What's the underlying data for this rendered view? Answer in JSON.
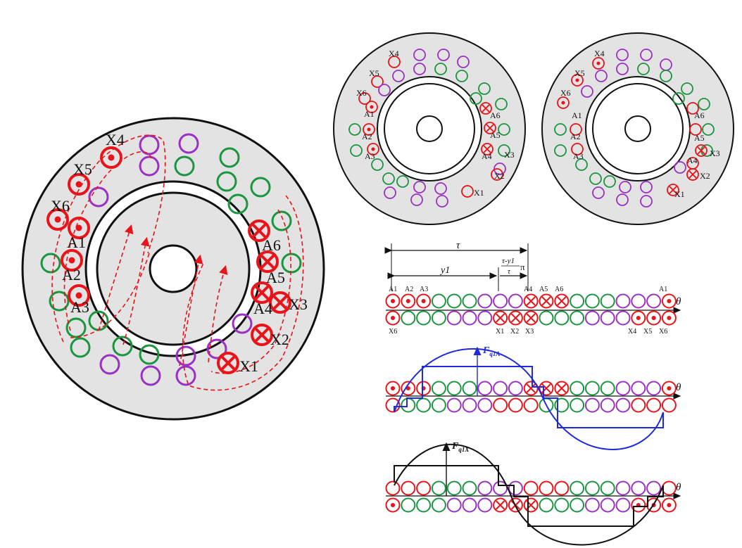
{
  "colors": {
    "red": "#e8141a",
    "green": "#1a9641",
    "purple": "#9b30c4",
    "blue": "#1f2bd6",
    "black": "#111111",
    "stator_fill": "#e3e3e3"
  },
  "big_stator": {
    "labels": {
      "X4": "X4",
      "X5": "X5",
      "X6": "X6",
      "A1": "A1",
      "A2": "A2",
      "A3": "A3",
      "A4": "A4",
      "A5": "A5",
      "A6": "A6",
      "X1": "X1",
      "X2": "X2",
      "X3": "X3"
    }
  },
  "small_stator_a": {
    "labels": {
      "X4": "X4",
      "X5": "X5",
      "X6": "X6",
      "A1": "A1",
      "A2": "A2",
      "A3": "A3",
      "A4": "A4",
      "A5": "A5",
      "A6": "A6",
      "X1": "X1",
      "X2": "X2",
      "X3": "X3"
    }
  },
  "small_stator_b": {
    "labels": {
      "X4": "X4",
      "X5": "X5",
      "X6": "X6",
      "A1": "A1",
      "A2": "A2",
      "A3": "A3",
      "A4": "A4",
      "A5": "A5",
      "A6": "A6",
      "X1": "X1",
      "X2": "X2",
      "X3": "X3"
    }
  },
  "linear_layout": {
    "tau": "τ",
    "y1": "y1",
    "frac_num": "τ-y1",
    "frac_den": "τ",
    "pi": "π",
    "theta": "θ",
    "top_labels": [
      "A1",
      "A2",
      "A3",
      "A4",
      "A5",
      "A6",
      "A1"
    ],
    "bottom_labels": [
      "X6",
      "X1",
      "X2",
      "X3",
      "X4",
      "X5",
      "X6"
    ]
  },
  "mmf_A": {
    "label": "F",
    "sub": "q1A",
    "theta": "θ"
  },
  "mmf_X": {
    "label": "F",
    "sub": "q1X",
    "theta": "θ"
  }
}
